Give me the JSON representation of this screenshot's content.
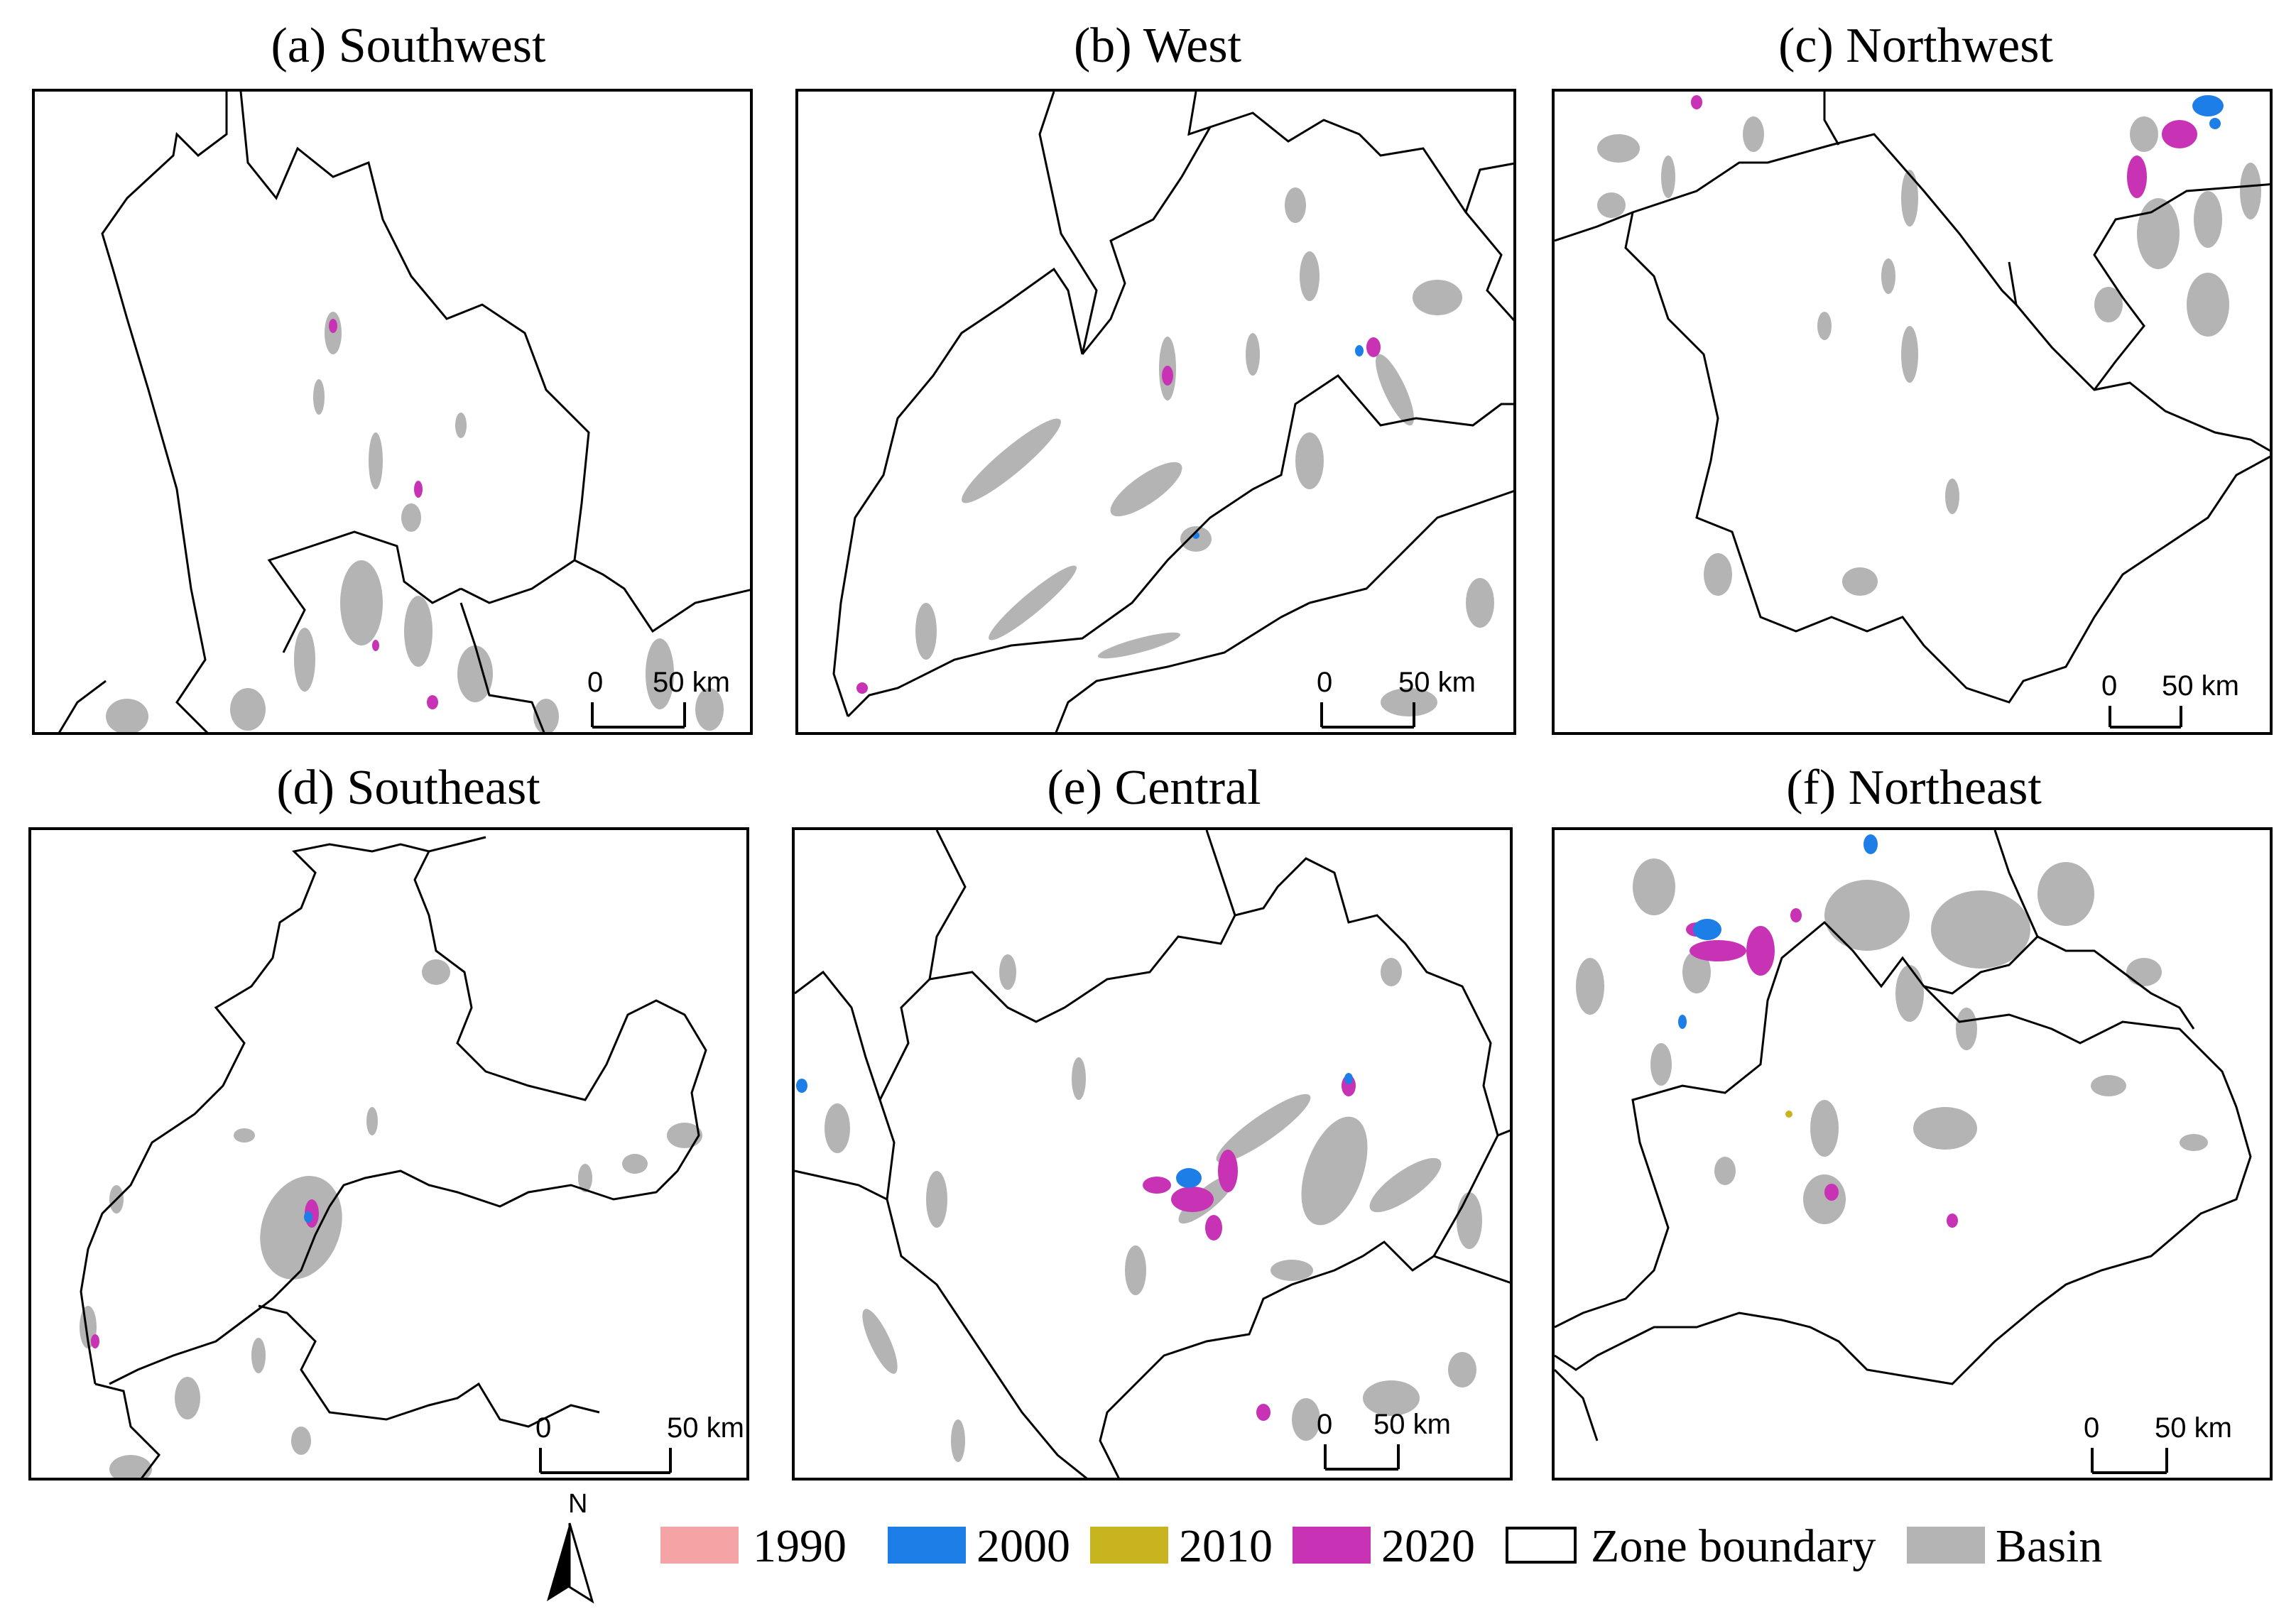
{
  "panels": [
    {
      "id": "a",
      "title": "(a) Southwest"
    },
    {
      "id": "b",
      "title": "(b) West"
    },
    {
      "id": "c",
      "title": "(c) Northwest"
    },
    {
      "id": "d",
      "title": "(d) Southeast"
    },
    {
      "id": "e",
      "title": "(e) Central"
    },
    {
      "id": "f",
      "title": "(f) Northeast"
    }
  ],
  "scale_bar": {
    "start_label": "0",
    "end_label": "50 km"
  },
  "north_arrow": {
    "label": "N"
  },
  "legend": [
    {
      "label": "1990",
      "color": "#f4a4a4"
    },
    {
      "label": "2000",
      "color": "#1e7ee8"
    },
    {
      "label": "2010",
      "color": "#c8b41e"
    },
    {
      "label": "2020",
      "color": "#c832b4"
    },
    {
      "label": "Zone boundary",
      "color": "#ffffff"
    },
    {
      "label": "Basin",
      "color": "#b4b4b4"
    }
  ]
}
